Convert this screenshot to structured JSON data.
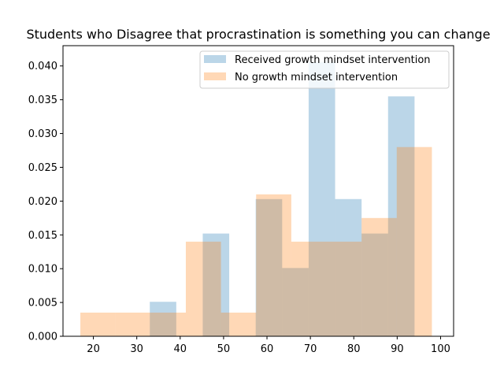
{
  "chart_data": {
    "type": "bar",
    "subtype": "overlapping-histogram",
    "title": "Students who Disagree that procrastination is something you can change",
    "xlabel": "",
    "ylabel": "",
    "xlim": [
      13,
      103
    ],
    "ylim": [
      0,
      0.043
    ],
    "x_ticks": [
      "20",
      "30",
      "40",
      "50",
      "60",
      "70",
      "80",
      "90",
      "100"
    ],
    "y_ticks": [
      "0.000",
      "0.005",
      "0.010",
      "0.015",
      "0.020",
      "0.025",
      "0.030",
      "0.035",
      "0.040"
    ],
    "grid": false,
    "legend_placement": "top-right",
    "series": [
      {
        "name": "Received growth mindset intervention",
        "color": "#1f77b4",
        "opacity": 0.3,
        "bins": [
          {
            "x0": 33.0,
            "x1": 39.1,
            "value": 0.0051
          },
          {
            "x0": 39.1,
            "x1": 45.2,
            "value": 0.0
          },
          {
            "x0": 45.2,
            "x1": 51.3,
            "value": 0.0152
          },
          {
            "x0": 51.3,
            "x1": 57.4,
            "value": 0.0
          },
          {
            "x0": 57.4,
            "x1": 63.5,
            "value": 0.0203
          },
          {
            "x0": 63.5,
            "x1": 69.6,
            "value": 0.0101
          },
          {
            "x0": 69.6,
            "x1": 75.7,
            "value": 0.0406
          },
          {
            "x0": 75.7,
            "x1": 81.8,
            "value": 0.0203
          },
          {
            "x0": 81.8,
            "x1": 87.9,
            "value": 0.0152
          },
          {
            "x0": 87.9,
            "x1": 94.0,
            "value": 0.0355
          }
        ]
      },
      {
        "name": "No growth mindset intervention",
        "color": "#ff7f0e",
        "opacity": 0.3,
        "bins": [
          {
            "x0": 17.0,
            "x1": 25.1,
            "value": 0.0035
          },
          {
            "x0": 25.1,
            "x1": 33.2,
            "value": 0.0035
          },
          {
            "x0": 33.2,
            "x1": 41.3,
            "value": 0.0035
          },
          {
            "x0": 41.3,
            "x1": 49.4,
            "value": 0.014
          },
          {
            "x0": 49.4,
            "x1": 57.5,
            "value": 0.0035
          },
          {
            "x0": 57.5,
            "x1": 65.6,
            "value": 0.021
          },
          {
            "x0": 65.6,
            "x1": 73.7,
            "value": 0.014
          },
          {
            "x0": 73.7,
            "x1": 81.8,
            "value": 0.014
          },
          {
            "x0": 81.8,
            "x1": 89.9,
            "value": 0.0175
          },
          {
            "x0": 89.9,
            "x1": 98.0,
            "value": 0.028
          }
        ]
      }
    ]
  }
}
